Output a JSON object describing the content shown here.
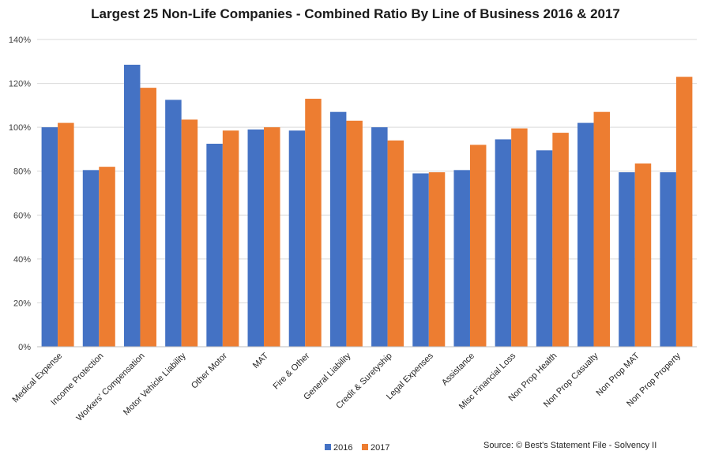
{
  "chart_data": {
    "type": "bar",
    "title": "Largest 25 Non-Life Companies - Combined Ratio By Line of Business 2016 & 2017",
    "xlabel": "",
    "ylabel": "",
    "ylim": [
      0,
      140
    ],
    "y_ticks": [
      "0%",
      "20%",
      "40%",
      "60%",
      "80%",
      "100%",
      "120%",
      "140%"
    ],
    "y_tick_values": [
      0,
      20,
      40,
      60,
      80,
      100,
      120,
      140
    ],
    "grid": true,
    "legend_position": "bottom",
    "categories": [
      "Medical Expense",
      "Income Protection",
      "Workers' Compensation",
      "Motor Vehicle Liability",
      "Other Motor",
      "MAT",
      "Fire & Other",
      "General Liability",
      "Credit & Suretyship",
      "Legal Expenses",
      "Assistance",
      "Misc Financial Loss",
      "Non Prop Health",
      "Non Prop Casualty",
      "Non Prop MAT",
      "Non Prop Property"
    ],
    "series": [
      {
        "name": "2016",
        "color": "#4472C4",
        "values": [
          100,
          80.5,
          128.5,
          112.5,
          92.5,
          99,
          98.5,
          107,
          100,
          79,
          80.5,
          94.5,
          89.5,
          102,
          79.5,
          79.5
        ]
      },
      {
        "name": "2017",
        "color": "#ED7D31",
        "values": [
          102,
          82,
          118,
          103.5,
          98.5,
          100,
          113,
          103,
          94,
          79.5,
          92,
          99.5,
          97.5,
          107,
          83.5,
          123
        ]
      }
    ],
    "source": "Source: © Best's Statement File - Solvency II"
  }
}
